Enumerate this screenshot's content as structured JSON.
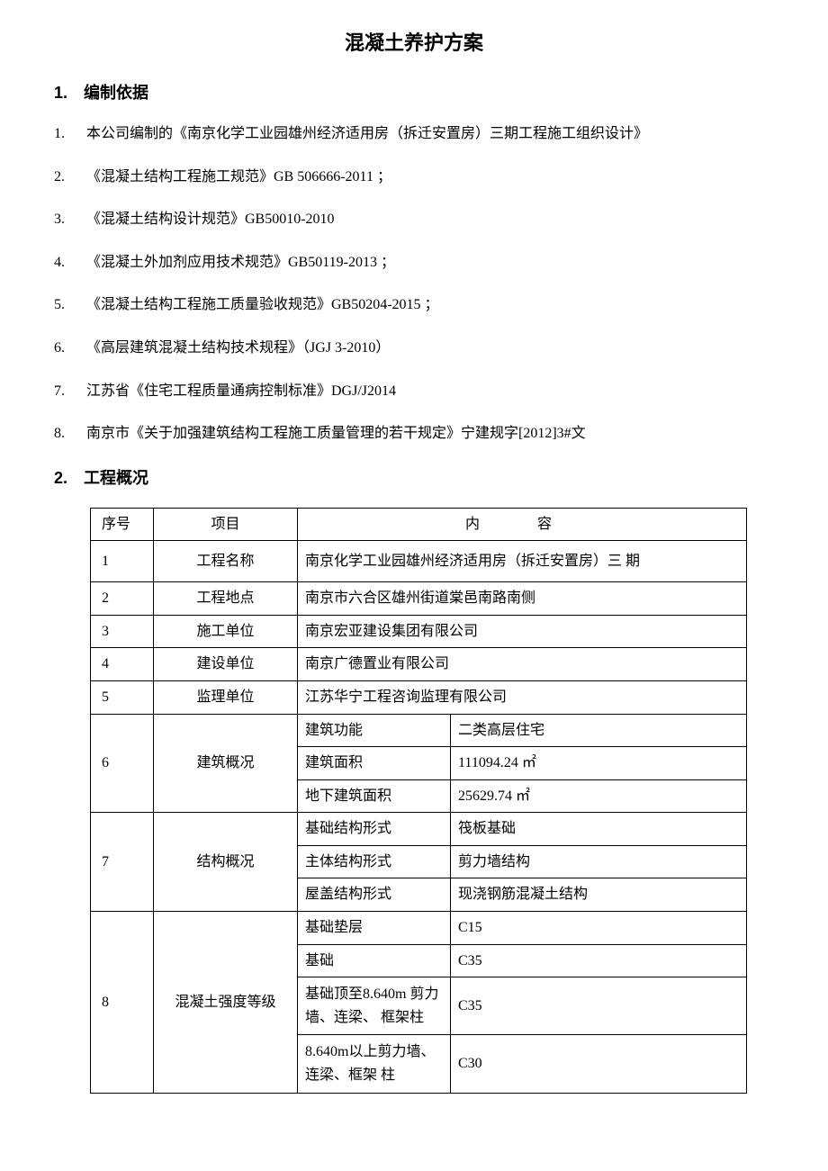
{
  "title": "混凝土养护方案",
  "sections": {
    "s1": {
      "number": "1.",
      "heading": "编制依据",
      "items": [
        {
          "num": "1.",
          "text": "本公司编制的《南京化学工业园雄州经济适用房（拆迁安置房）三期工程施工组织设计》"
        },
        {
          "num": "2.",
          "text": "《混凝土结构工程施工规范》GB 506666-2011 ；"
        },
        {
          "num": "3.",
          "text": "《混凝土结构设计规范》GB50010-2010"
        },
        {
          "num": "4.",
          "text": "《混凝土外加剂应用技术规范》GB50119-2013 ；"
        },
        {
          "num": "5.",
          "text": "《混凝土结构工程施工质量验收规范》GB50204-2015 ；"
        },
        {
          "num": "6.",
          "text": "《高层建筑混凝土结构技术规程》（JGJ 3-2010）"
        },
        {
          "num": "7.",
          "text": "江苏省《住宅工程质量通病控制标准》DGJ/J2014"
        },
        {
          "num": "8.",
          "text": "南京市《关于加强建筑结构工程施工质量管理的若干规定》宁建规字[2012]3#文"
        }
      ]
    },
    "s2": {
      "number": "2.",
      "heading": "工程概况"
    }
  },
  "table": {
    "headers": {
      "seq": "序号",
      "item": "项目",
      "content": "内 容"
    },
    "rows": {
      "r1": {
        "seq": "1",
        "item": "工程名称",
        "content": "南京化学工业园雄州经济适用房（拆迁安置房）三  期"
      },
      "r2": {
        "seq": "2",
        "item": "工程地点",
        "content": "南京市六合区雄州街道棠邑南路南侧"
      },
      "r3": {
        "seq": "3",
        "item": "施工单位",
        "content": "南京宏亚建设集团有限公司"
      },
      "r4": {
        "seq": "4",
        "item": "建设单位",
        "content": "南京广德置业有限公司"
      },
      "r5": {
        "seq": "5",
        "item": "监理单位",
        "content": "江苏华宁工程咨询监理有限公司"
      },
      "r6": {
        "seq": "6",
        "item": "建筑概况",
        "sub": [
          {
            "label": "建筑功能",
            "value": "二类高层住宅"
          },
          {
            "label": "建筑面积",
            "value": "111094.24 ㎡"
          },
          {
            "label": "地下建筑面积",
            "value": "25629.74 ㎡"
          }
        ]
      },
      "r7": {
        "seq": "7",
        "item": "结构概况",
        "sub": [
          {
            "label": "基础结构形式",
            "value": "筏板基础"
          },
          {
            "label": "主体结构形式",
            "value": "剪力墙结构"
          },
          {
            "label": "屋盖结构形式",
            "value": "现浇钢筋混凝土结构"
          }
        ]
      },
      "r8": {
        "seq": "8",
        "item": "混凝土强度等级",
        "sub": [
          {
            "label": "基础垫层",
            "value": "C15"
          },
          {
            "label": "基础",
            "value": "C35"
          },
          {
            "label": "基础顶至8.640m 剪力墙、连梁、 框架柱",
            "value": "C35"
          },
          {
            "label": "8.640m以上剪力墙、连梁、框架  柱",
            "value": "C30"
          }
        ]
      }
    }
  }
}
